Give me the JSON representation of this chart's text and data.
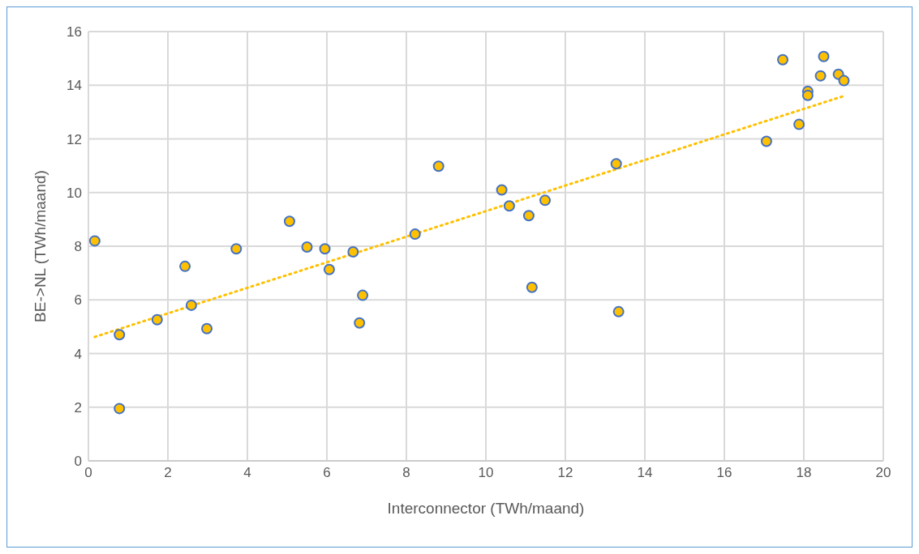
{
  "chart_data": {
    "type": "scatter",
    "xlabel": "Interconnector (TWh/maand)",
    "ylabel": "BE->NL (TWh/maand)",
    "series": [
      {
        "type": "scatter",
        "color": "#ffc000",
        "marker": "circle",
        "x": [
          0.16,
          0.78,
          0.78,
          1.73,
          2.43,
          2.59,
          2.98,
          3.72,
          5.06,
          5.5,
          5.95,
          6.06,
          6.66,
          6.82,
          6.9,
          8.22,
          8.81,
          10.4,
          10.59,
          11.08,
          11.16,
          11.49,
          13.28,
          13.34,
          17.06,
          17.47,
          17.88,
          18.1,
          18.1,
          18.42,
          18.5,
          18.87,
          19.01
        ],
        "values": [
          8.2,
          4.7,
          1.95,
          5.26,
          7.25,
          5.8,
          4.93,
          7.9,
          8.93,
          7.97,
          7.9,
          7.13,
          7.79,
          5.14,
          6.17,
          8.45,
          10.98,
          10.1,
          9.5,
          9.14,
          6.47,
          9.71,
          11.07,
          5.56,
          11.91,
          14.95,
          12.54,
          13.77,
          13.62,
          14.35,
          15.07,
          14.41,
          14.17
        ]
      },
      {
        "type": "line",
        "color": "#ffc000",
        "line_style": "dotted",
        "marker": "none",
        "x": [
          0.16,
          19.01
        ],
        "values": [
          4.62,
          13.6
        ]
      }
    ],
    "xlim": [
      0,
      20
    ],
    "xticks": [
      0,
      2,
      4,
      6,
      8,
      10,
      12,
      14,
      16,
      18,
      20
    ],
    "ylim": [
      0,
      16
    ],
    "yticks": [
      0,
      2,
      4,
      6,
      8,
      10,
      12,
      14,
      16
    ],
    "grid": true,
    "legend": false
  }
}
